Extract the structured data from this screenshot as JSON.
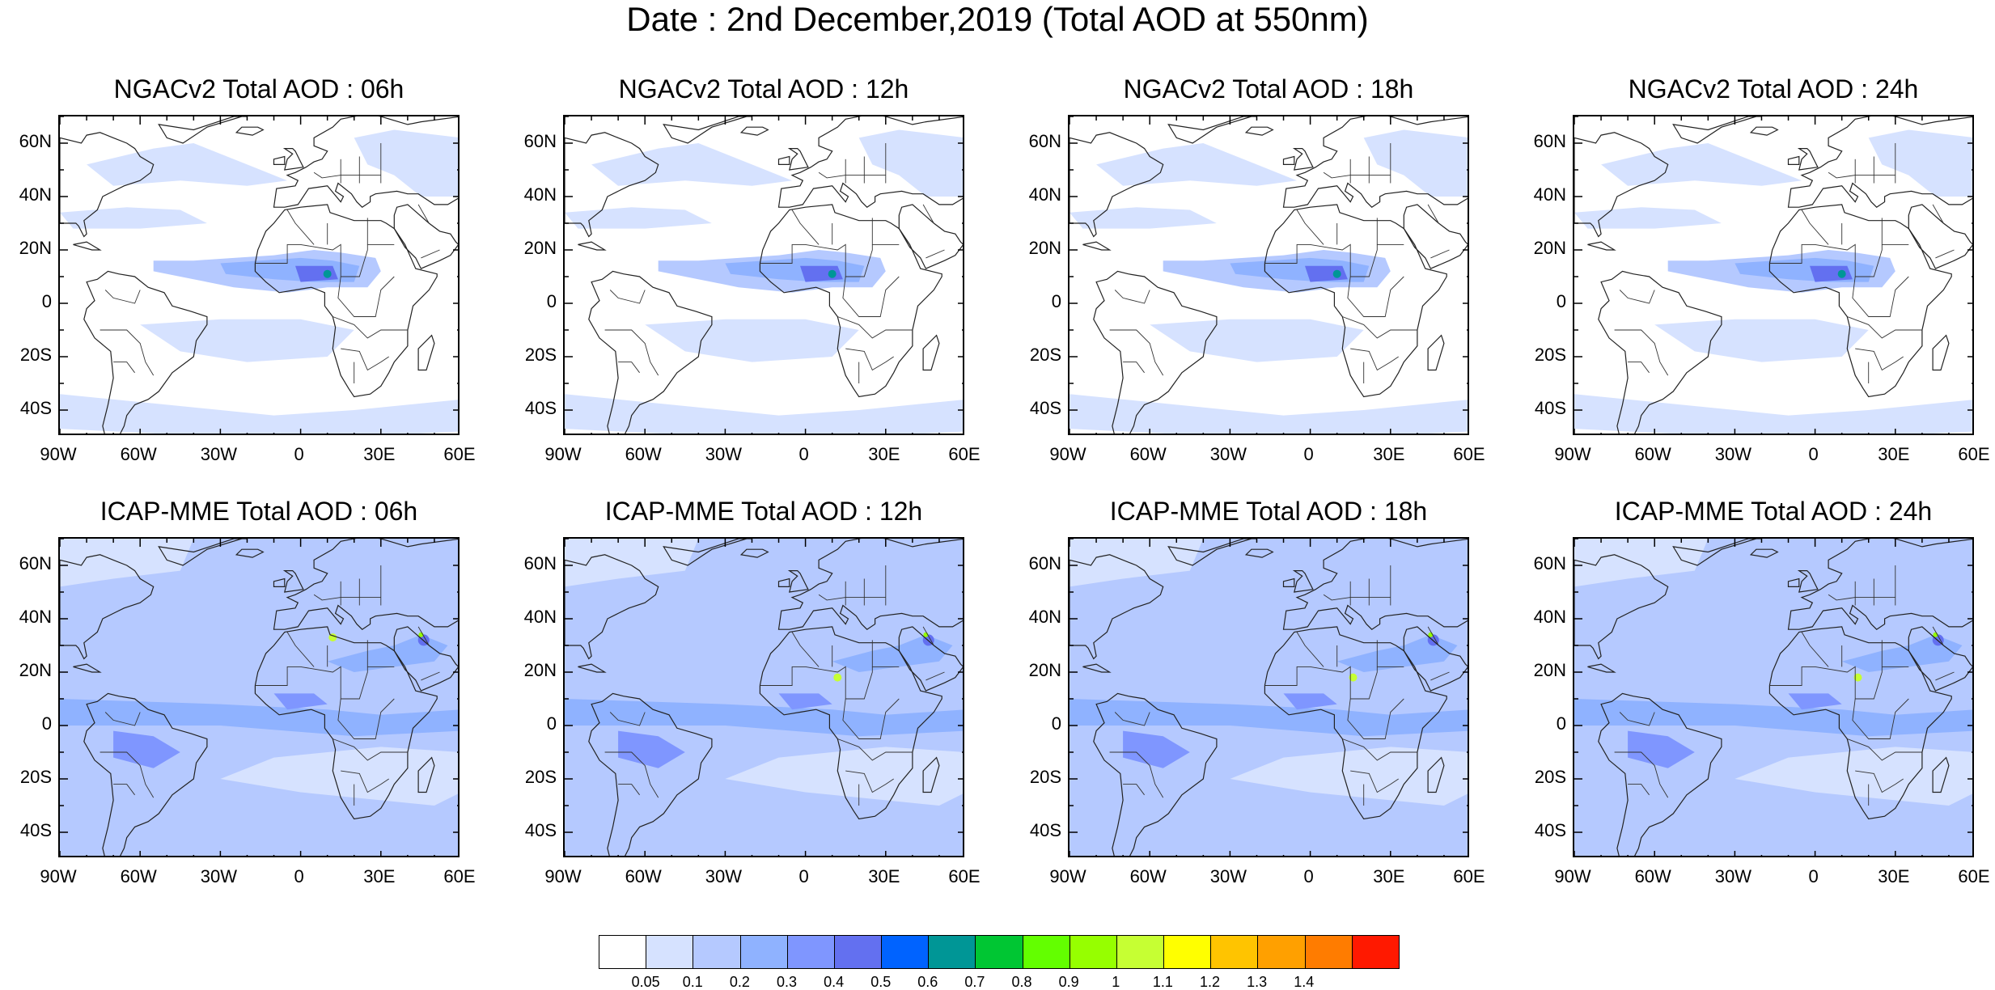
{
  "title": "Date : 2nd December,2019 (Total AOD at 550nm)",
  "panels": [
    {
      "title": "NGACv2 Total AOD : 06h",
      "model": "ngac"
    },
    {
      "title": "NGACv2 Total AOD : 12h",
      "model": "ngac"
    },
    {
      "title": "NGACv2 Total AOD : 18h",
      "model": "ngac"
    },
    {
      "title": "NGACv2 Total AOD : 24h",
      "model": "ngac"
    },
    {
      "title": "ICAP-MME Total AOD : 06h",
      "model": "icap"
    },
    {
      "title": "ICAP-MME Total AOD : 12h",
      "model": "icap"
    },
    {
      "title": "ICAP-MME Total AOD : 18h",
      "model": "icap"
    },
    {
      "title": "ICAP-MME Total AOD : 24h",
      "model": "icap"
    }
  ],
  "map_extent": {
    "lon_min": -90,
    "lon_max": 60,
    "lat_min": -50,
    "lat_max": 70
  },
  "lat_ticks": [
    {
      "value": 60,
      "label": "60N"
    },
    {
      "value": 40,
      "label": "40N"
    },
    {
      "value": 20,
      "label": "20N"
    },
    {
      "value": 0,
      "label": "0"
    },
    {
      "value": -20,
      "label": "20S"
    },
    {
      "value": -40,
      "label": "40S"
    }
  ],
  "lon_ticks": [
    {
      "value": -90,
      "label": "90W"
    },
    {
      "value": -60,
      "label": "60W"
    },
    {
      "value": -30,
      "label": "30W"
    },
    {
      "value": 0,
      "label": "0"
    },
    {
      "value": 30,
      "label": "30E"
    },
    {
      "value": 60,
      "label": "60E"
    }
  ],
  "colorbar": {
    "labels": [
      "0.05",
      "0.1",
      "0.2",
      "0.3",
      "0.4",
      "0.5",
      "0.6",
      "0.7",
      "0.8",
      "0.9",
      "1",
      "1.1",
      "1.2",
      "1.3",
      "1.4"
    ],
    "colors": [
      "#ffffff",
      "#d6e2ff",
      "#b5c9ff",
      "#8fb2ff",
      "#7f96ff",
      "#6370f0",
      "#0063ff",
      "#009696",
      "#00c633",
      "#63ff00",
      "#96ff00",
      "#c6ff33",
      "#ffff00",
      "#ffc400",
      "#ffa000",
      "#ff7c00",
      "#ff1900"
    ]
  }
}
